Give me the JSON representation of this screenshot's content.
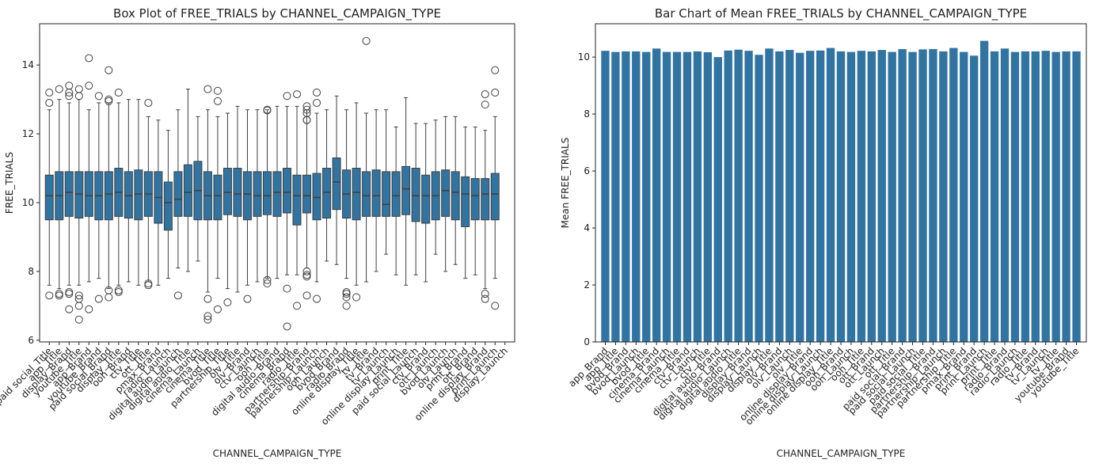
{
  "chart_data": [
    {
      "type": "box",
      "title": "Box Plot of FREE_TRIALS by CHANNEL_CAMPAIGN_TYPE",
      "x_label": "CHANNEL_CAMPAIGN_TYPE",
      "y_label": "FREE_TRIALS",
      "color": "#3274a1",
      "ylim": [
        5.95,
        15.2
      ],
      "yticks": [
        6,
        8,
        10,
        12,
        14
      ],
      "categories": [
        "paid social_Title",
        "app_Title",
        "display_Brand",
        "youtube_Title",
        "app_Brand",
        "youtube_Brand",
        "paid social_Brand",
        "display_Title",
        "ooh_Brand",
        "ctv_Title",
        "ott_Title",
        "pmax_Brand",
        "radio_Launch",
        "digital audio_Launch",
        "digital audio_Title",
        "cinema_Launch",
        "cinema_Title",
        "bvod_Title",
        "partnership_Title",
        "olv_Title",
        "olv_Brand",
        "ctv_Launch",
        "ooh_Title",
        "digital audio_Brand",
        "cinema_Brand",
        "radio_Title",
        "partnership_Brand",
        "partnership_Launch",
        "ooh_Launch",
        "bvod_Brand",
        "radio_Brand",
        "online display_Title",
        "tv_Title",
        "tv_Brand",
        "tv_Launch",
        "online display_Launch",
        "print_Title",
        "paid social_Launch",
        "ctv_Brand",
        "ott_Launch",
        "bvod_Launch",
        "olv_Launch",
        "print_Brand",
        "ott_Brand",
        "online display_Brand",
        "print_Launch",
        "display_Launch"
      ],
      "boxes": [
        {
          "q1": 9.5,
          "median": 10.2,
          "q3": 10.8,
          "low": 7.6,
          "high": 12.7,
          "fliers": [
            13.2,
            12.9,
            7.3
          ]
        },
        {
          "q1": 9.5,
          "median": 10.2,
          "q3": 10.9,
          "low": 7.5,
          "high": 13.0,
          "fliers": [
            13.3,
            7.3,
            7.35
          ]
        },
        {
          "q1": 9.6,
          "median": 10.3,
          "q3": 10.9,
          "low": 7.6,
          "high": 12.9,
          "fliers": [
            13.4,
            13.2,
            13.1,
            7.4,
            7.35,
            6.9
          ]
        },
        {
          "q1": 9.55,
          "median": 10.25,
          "q3": 10.9,
          "low": 7.6,
          "high": 13.0,
          "fliers": [
            13.3,
            13.1,
            7.3,
            7.2,
            7.0,
            6.6
          ]
        },
        {
          "q1": 9.6,
          "median": 10.2,
          "q3": 10.9,
          "low": 7.7,
          "high": 12.7,
          "fliers": [
            14.2,
            13.4,
            6.9
          ]
        },
        {
          "q1": 9.5,
          "median": 10.2,
          "q3": 10.9,
          "low": 7.8,
          "high": 12.9,
          "fliers": [
            13.1,
            7.2
          ]
        },
        {
          "q1": 9.5,
          "median": 10.25,
          "q3": 10.9,
          "low": 7.5,
          "high": 12.9,
          "fliers": [
            13.85,
            13.0,
            12.95,
            7.45,
            7.25
          ]
        },
        {
          "q1": 9.6,
          "median": 10.3,
          "q3": 11.0,
          "low": 7.6,
          "high": 12.9,
          "fliers": [
            13.2,
            7.45,
            7.4
          ]
        },
        {
          "q1": 9.55,
          "median": 10.2,
          "q3": 10.9,
          "low": 7.7,
          "high": 13.0,
          "fliers": []
        },
        {
          "q1": 9.5,
          "median": 10.25,
          "q3": 10.95,
          "low": 7.6,
          "high": 13.0,
          "fliers": []
        },
        {
          "q1": 9.6,
          "median": 10.25,
          "q3": 10.9,
          "low": 7.7,
          "high": 12.5,
          "fliers": [
            12.9,
            7.65,
            7.6
          ]
        },
        {
          "q1": 9.4,
          "median": 10.15,
          "q3": 10.9,
          "low": 7.6,
          "high": 12.4,
          "fliers": []
        },
        {
          "q1": 9.2,
          "median": 10.0,
          "q3": 10.6,
          "low": 7.8,
          "high": 12.1,
          "fliers": []
        },
        {
          "q1": 9.6,
          "median": 10.1,
          "q3": 10.9,
          "low": 8.1,
          "high": 12.7,
          "fliers": [
            7.3
          ]
        },
        {
          "q1": 9.6,
          "median": 10.3,
          "q3": 11.1,
          "low": 8.0,
          "high": 13.3,
          "fliers": []
        },
        {
          "q1": 9.5,
          "median": 10.35,
          "q3": 11.2,
          "low": 8.3,
          "high": 12.5,
          "fliers": []
        },
        {
          "q1": 9.5,
          "median": 10.2,
          "q3": 10.9,
          "low": 7.4,
          "high": 12.7,
          "fliers": [
            13.3,
            7.2,
            6.7,
            6.6
          ]
        },
        {
          "q1": 9.5,
          "median": 10.2,
          "q3": 10.8,
          "low": 7.8,
          "high": 12.5,
          "fliers": [
            13.25,
            12.95,
            6.9
          ]
        },
        {
          "q1": 9.65,
          "median": 10.3,
          "q3": 11.0,
          "low": 7.5,
          "high": 12.6,
          "fliers": [
            7.1
          ]
        },
        {
          "q1": 9.6,
          "median": 10.25,
          "q3": 11.0,
          "low": 7.4,
          "high": 12.8,
          "fliers": []
        },
        {
          "q1": 9.5,
          "median": 10.25,
          "q3": 10.9,
          "low": 7.6,
          "high": 12.7,
          "fliers": [
            7.2
          ]
        },
        {
          "q1": 9.6,
          "median": 10.2,
          "q3": 10.9,
          "low": 7.7,
          "high": 12.7,
          "fliers": []
        },
        {
          "q1": 9.65,
          "median": 10.2,
          "q3": 10.9,
          "low": 7.8,
          "high": 12.7,
          "fliers": [
            12.7,
            12.68,
            7.75,
            7.65
          ]
        },
        {
          "q1": 9.6,
          "median": 10.3,
          "q3": 10.9,
          "low": 7.8,
          "high": 12.8,
          "fliers": []
        },
        {
          "q1": 9.7,
          "median": 10.3,
          "q3": 11.0,
          "low": 7.9,
          "high": 12.8,
          "fliers": [
            13.1,
            7.5,
            6.4
          ]
        },
        {
          "q1": 9.35,
          "median": 10.2,
          "q3": 10.8,
          "low": 7.9,
          "high": 12.8,
          "fliers": [
            13.15,
            7.0
          ]
        },
        {
          "q1": 9.7,
          "median": 10.2,
          "q3": 10.8,
          "low": 8.1,
          "high": 12.7,
          "fliers": [
            12.8,
            12.7,
            12.6,
            12.4,
            12.4,
            8.0,
            7.9,
            7.85,
            7.3
          ]
        },
        {
          "q1": 9.5,
          "median": 10.15,
          "q3": 10.85,
          "low": 7.7,
          "high": 12.6,
          "fliers": [
            13.2,
            12.9,
            7.2
          ]
        },
        {
          "q1": 9.55,
          "median": 10.3,
          "q3": 11.0,
          "low": 8.3,
          "high": 12.7,
          "fliers": []
        },
        {
          "q1": 9.8,
          "median": 10.6,
          "q3": 11.3,
          "low": 8.2,
          "high": 13.1,
          "fliers": []
        },
        {
          "q1": 9.55,
          "median": 10.25,
          "q3": 10.95,
          "low": 7.8,
          "high": 12.7,
          "fliers": [
            7.4,
            7.35,
            7.25,
            7.0
          ]
        },
        {
          "q1": 9.5,
          "median": 10.3,
          "q3": 11.0,
          "low": 7.6,
          "high": 12.9,
          "fliers": [
            7.25
          ]
        },
        {
          "q1": 9.6,
          "median": 10.2,
          "q3": 10.9,
          "low": 7.7,
          "high": 12.6,
          "fliers": [
            14.7
          ]
        },
        {
          "q1": 9.6,
          "median": 10.2,
          "q3": 10.95,
          "low": 8.0,
          "high": 12.7,
          "fliers": []
        },
        {
          "q1": 9.6,
          "median": 9.95,
          "q3": 10.9,
          "low": 8.5,
          "high": 12.7,
          "fliers": []
        },
        {
          "q1": 9.6,
          "median": 10.2,
          "q3": 10.9,
          "low": 7.9,
          "high": 12.2,
          "fliers": []
        },
        {
          "q1": 9.65,
          "median": 10.4,
          "q3": 11.05,
          "low": 7.6,
          "high": 13.05,
          "fliers": []
        },
        {
          "q1": 9.45,
          "median": 10.2,
          "q3": 11.0,
          "low": 7.9,
          "high": 12.3,
          "fliers": []
        },
        {
          "q1": 9.4,
          "median": 10.2,
          "q3": 10.8,
          "low": 7.7,
          "high": 12.3,
          "fliers": []
        },
        {
          "q1": 9.5,
          "median": 10.2,
          "q3": 10.9,
          "low": 8.5,
          "high": 12.4,
          "fliers": []
        },
        {
          "q1": 9.6,
          "median": 10.35,
          "q3": 10.95,
          "low": 8.0,
          "high": 12.5,
          "fliers": []
        },
        {
          "q1": 9.5,
          "median": 10.3,
          "q3": 10.9,
          "low": 8.2,
          "high": 12.5,
          "fliers": []
        },
        {
          "q1": 9.3,
          "median": 10.25,
          "q3": 10.75,
          "low": 7.8,
          "high": 12.2,
          "fliers": []
        },
        {
          "q1": 9.5,
          "median": 10.2,
          "q3": 10.7,
          "low": 7.9,
          "high": 12.2,
          "fliers": []
        },
        {
          "q1": 9.5,
          "median": 10.25,
          "q3": 10.7,
          "low": 7.5,
          "high": 12.1,
          "fliers": [
            13.15,
            12.85,
            7.35,
            7.2
          ]
        },
        {
          "q1": 9.5,
          "median": 10.25,
          "q3": 10.85,
          "low": 7.8,
          "high": 12.5,
          "fliers": [
            13.85,
            13.2,
            7.0
          ]
        }
      ]
    },
    {
      "type": "bar",
      "title": "Bar Chart of Mean FREE_TRIALS by CHANNEL_CAMPAIGN_TYPE",
      "x_label": "CHANNEL_CAMPAIGN_TYPE",
      "y_label": "Mean FREE_TRIALS",
      "color": "#3274a1",
      "ylim": [
        0,
        11.17
      ],
      "yticks": [
        0,
        2,
        4,
        6,
        8,
        10
      ],
      "categories": [
        "app_Brand",
        "app_Title",
        "bvod_Brand",
        "bvod_Launch",
        "bvod_Title",
        "cinema_Brand",
        "cinema_Launch",
        "cinema_Title",
        "ctv_Brand",
        "ctv_Launch",
        "ctv_Title",
        "digital audio_Brand",
        "digital audio_Launch",
        "digital audio_Title",
        "display_Brand",
        "display_Launch",
        "display_Title",
        "olv_Brand",
        "olv_Launch",
        "olv_Title",
        "online display_Brand",
        "online display_Launch",
        "online display_Title",
        "ooh_Brand",
        "ooh_Launch",
        "ooh_Title",
        "ott_Brand",
        "ott_Launch",
        "ott_Title",
        "paid social_Brand",
        "paid social_Launch",
        "paid social_Title",
        "partnership_Brand",
        "partnership_Launch",
        "partnership_Title",
        "pmax_Brand",
        "print_Brand",
        "print_Launch",
        "print_Title",
        "radio_Brand",
        "radio_Launch",
        "radio_Title",
        "tv_Brand",
        "tv_Launch",
        "tv_Title",
        "youtube_Brand",
        "youtube_Title"
      ],
      "values": [
        10.22,
        10.18,
        10.2,
        10.2,
        10.18,
        10.3,
        10.18,
        10.18,
        10.18,
        10.2,
        10.17,
        10.0,
        10.23,
        10.26,
        10.22,
        10.08,
        10.3,
        10.2,
        10.25,
        10.15,
        10.22,
        10.23,
        10.32,
        10.2,
        10.18,
        10.22,
        10.2,
        10.25,
        10.18,
        10.28,
        10.18,
        10.27,
        10.28,
        10.2,
        10.32,
        10.18,
        10.05,
        10.57,
        10.2,
        10.3,
        10.18,
        10.2,
        10.2,
        10.22,
        10.18,
        10.2,
        10.2
      ]
    }
  ]
}
